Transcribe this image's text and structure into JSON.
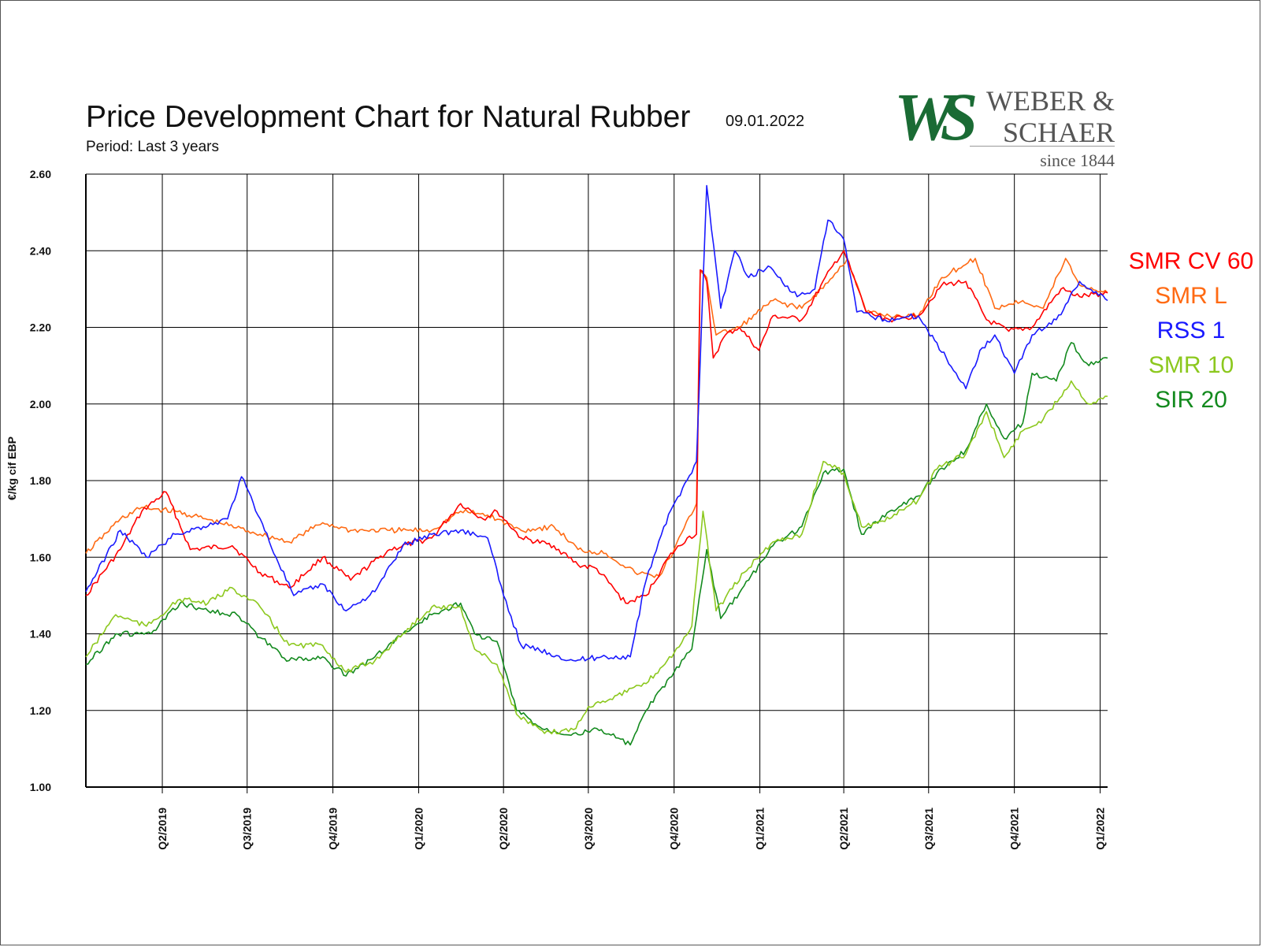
{
  "header": {
    "title": "Price Development Chart for Natural Rubber",
    "date": "09.01.2022",
    "subtitle": "Period: Last 3 years"
  },
  "logo": {
    "mark": "WS",
    "line1": "WEBER &",
    "line2": "SCHAER",
    "line3": "since 1844",
    "color": "#1a6b34"
  },
  "chart_data": {
    "type": "line",
    "title": "Price Development Chart for Natural Rubber",
    "ylabel": "€/kg cif EBP",
    "xlabel": "",
    "ylim": [
      1.0,
      2.6
    ],
    "yticks": [
      "1.00",
      "1.20",
      "1.40",
      "1.60",
      "1.80",
      "2.00",
      "2.20",
      "2.40",
      "2.60"
    ],
    "xlim": [
      "2019-01-09",
      "2022-01-09"
    ],
    "x_tick_labels": [
      {
        "label": "Q2/2019",
        "date": "2019-04-01"
      },
      {
        "label": "Q3/2019",
        "date": "2019-07-01"
      },
      {
        "label": "Q4/2019",
        "date": "2019-10-01"
      },
      {
        "label": "Q1/2020",
        "date": "2020-01-01"
      },
      {
        "label": "Q2/2020",
        "date": "2020-04-01"
      },
      {
        "label": "Q3/2020",
        "date": "2020-07-01"
      },
      {
        "label": "Q4/2020",
        "date": "2020-10-01"
      },
      {
        "label": "Q1/2021",
        "date": "2021-01-01"
      },
      {
        "label": "Q2/2021",
        "date": "2021-04-01"
      },
      {
        "label": "Q3/2021",
        "date": "2021-07-01"
      },
      {
        "label": "Q4/2021",
        "date": "2021-10-01"
      },
      {
        "label": "Q1/2022",
        "date": "2022-01-01"
      }
    ],
    "grid": true,
    "legend_position": "right",
    "series": [
      {
        "name": "SMR CV 60",
        "color": "#ff0000",
        "points": [
          [
            "2019-01-09",
            1.5
          ],
          [
            "2019-02-15",
            1.62
          ],
          [
            "2019-03-10",
            1.72
          ],
          [
            "2019-04-05",
            1.77
          ],
          [
            "2019-05-01",
            1.62
          ],
          [
            "2019-06-15",
            1.63
          ],
          [
            "2019-07-15",
            1.56
          ],
          [
            "2019-08-15",
            1.52
          ],
          [
            "2019-09-20",
            1.6
          ],
          [
            "2019-10-20",
            1.54
          ],
          [
            "2019-12-01",
            1.62
          ],
          [
            "2020-01-15",
            1.65
          ],
          [
            "2020-02-15",
            1.74
          ],
          [
            "2020-03-10",
            1.7
          ],
          [
            "2020-03-25",
            1.72
          ],
          [
            "2020-04-20",
            1.65
          ],
          [
            "2020-05-25",
            1.63
          ],
          [
            "2020-06-20",
            1.58
          ],
          [
            "2020-07-10",
            1.57
          ],
          [
            "2020-08-10",
            1.48
          ],
          [
            "2020-09-01",
            1.5
          ],
          [
            "2020-09-25",
            1.6
          ],
          [
            "2020-10-15",
            1.65
          ],
          [
            "2020-10-25",
            1.66
          ],
          [
            "2020-10-29",
            2.35
          ],
          [
            "2020-11-05",
            2.32
          ],
          [
            "2020-11-12",
            2.12
          ],
          [
            "2020-11-25",
            2.18
          ],
          [
            "2020-12-10",
            2.2
          ],
          [
            "2020-12-31",
            2.14
          ],
          [
            "2021-01-15",
            2.23
          ],
          [
            "2021-02-15",
            2.22
          ],
          [
            "2021-03-20",
            2.36
          ],
          [
            "2021-04-01",
            2.4
          ],
          [
            "2021-04-25",
            2.24
          ],
          [
            "2021-05-20",
            2.22
          ],
          [
            "2021-06-20",
            2.23
          ],
          [
            "2021-07-15",
            2.31
          ],
          [
            "2021-08-10",
            2.32
          ],
          [
            "2021-09-01",
            2.22
          ],
          [
            "2021-09-25",
            2.19
          ],
          [
            "2021-10-20",
            2.2
          ],
          [
            "2021-11-20",
            2.3
          ],
          [
            "2021-12-10",
            2.28
          ],
          [
            "2022-01-09",
            2.29
          ]
        ]
      },
      {
        "name": "SMR L",
        "color": "#ff6a13",
        "points": [
          [
            "2019-01-09",
            1.61
          ],
          [
            "2019-02-15",
            1.7
          ],
          [
            "2019-03-10",
            1.73
          ],
          [
            "2019-04-15",
            1.72
          ],
          [
            "2019-06-01",
            1.69
          ],
          [
            "2019-07-15",
            1.66
          ],
          [
            "2019-08-15",
            1.64
          ],
          [
            "2019-09-20",
            1.69
          ],
          [
            "2019-10-20",
            1.67
          ],
          [
            "2019-12-01",
            1.67
          ],
          [
            "2020-01-15",
            1.67
          ],
          [
            "2020-02-15",
            1.72
          ],
          [
            "2020-03-15",
            1.71
          ],
          [
            "2020-04-20",
            1.67
          ],
          [
            "2020-05-25",
            1.68
          ],
          [
            "2020-06-20",
            1.62
          ],
          [
            "2020-07-20",
            1.61
          ],
          [
            "2020-08-20",
            1.56
          ],
          [
            "2020-09-15",
            1.55
          ],
          [
            "2020-10-01",
            1.62
          ],
          [
            "2020-10-25",
            1.74
          ],
          [
            "2020-10-29",
            2.35
          ],
          [
            "2020-11-05",
            2.33
          ],
          [
            "2020-11-15",
            2.18
          ],
          [
            "2020-12-10",
            2.2
          ],
          [
            "2021-01-15",
            2.27
          ],
          [
            "2021-02-15",
            2.25
          ],
          [
            "2021-03-20",
            2.33
          ],
          [
            "2021-04-05",
            2.38
          ],
          [
            "2021-04-25",
            2.24
          ],
          [
            "2021-05-20",
            2.23
          ],
          [
            "2021-06-20",
            2.23
          ],
          [
            "2021-07-15",
            2.33
          ],
          [
            "2021-08-20",
            2.38
          ],
          [
            "2021-09-10",
            2.25
          ],
          [
            "2021-10-10",
            2.27
          ],
          [
            "2021-11-01",
            2.25
          ],
          [
            "2021-11-25",
            2.38
          ],
          [
            "2021-12-10",
            2.31
          ],
          [
            "2022-01-09",
            2.29
          ]
        ]
      },
      {
        "name": "RSS 1",
        "color": "#1a1aff",
        "points": [
          [
            "2019-01-09",
            1.51
          ],
          [
            "2019-02-15",
            1.67
          ],
          [
            "2019-03-15",
            1.6
          ],
          [
            "2019-04-15",
            1.66
          ],
          [
            "2019-05-15",
            1.68
          ],
          [
            "2019-06-10",
            1.7
          ],
          [
            "2019-06-25",
            1.81
          ],
          [
            "2019-07-15",
            1.7
          ],
          [
            "2019-08-01",
            1.6
          ],
          [
            "2019-08-20",
            1.5
          ],
          [
            "2019-09-20",
            1.53
          ],
          [
            "2019-10-15",
            1.46
          ],
          [
            "2019-11-15",
            1.51
          ],
          [
            "2019-12-15",
            1.63
          ],
          [
            "2020-01-15",
            1.66
          ],
          [
            "2020-02-15",
            1.67
          ],
          [
            "2020-03-15",
            1.65
          ],
          [
            "2020-04-01",
            1.5
          ],
          [
            "2020-04-20",
            1.37
          ],
          [
            "2020-05-20",
            1.35
          ],
          [
            "2020-06-15",
            1.33
          ],
          [
            "2020-07-15",
            1.34
          ],
          [
            "2020-08-15",
            1.34
          ],
          [
            "2020-09-01",
            1.54
          ],
          [
            "2020-09-20",
            1.68
          ],
          [
            "2020-10-10",
            1.78
          ],
          [
            "2020-10-25",
            1.85
          ],
          [
            "2020-11-05",
            2.57
          ],
          [
            "2020-11-20",
            2.25
          ],
          [
            "2020-12-05",
            2.4
          ],
          [
            "2020-12-20",
            2.33
          ],
          [
            "2021-01-10",
            2.36
          ],
          [
            "2021-02-10",
            2.28
          ],
          [
            "2021-03-01",
            2.3
          ],
          [
            "2021-03-15",
            2.48
          ],
          [
            "2021-04-01",
            2.43
          ],
          [
            "2021-04-15",
            2.24
          ],
          [
            "2021-05-15",
            2.22
          ],
          [
            "2021-06-20",
            2.23
          ],
          [
            "2021-07-20",
            2.12
          ],
          [
            "2021-08-10",
            2.04
          ],
          [
            "2021-08-25",
            2.14
          ],
          [
            "2021-09-10",
            2.18
          ],
          [
            "2021-10-01",
            2.08
          ],
          [
            "2021-10-20",
            2.18
          ],
          [
            "2021-11-15",
            2.22
          ],
          [
            "2021-12-10",
            2.32
          ],
          [
            "2022-01-09",
            2.27
          ]
        ]
      },
      {
        "name": "SMR 10",
        "color": "#8cc81e",
        "points": [
          [
            "2019-01-09",
            1.34
          ],
          [
            "2019-02-10",
            1.45
          ],
          [
            "2019-03-15",
            1.42
          ],
          [
            "2019-04-20",
            1.49
          ],
          [
            "2019-05-20",
            1.48
          ],
          [
            "2019-06-15",
            1.52
          ],
          [
            "2019-07-15",
            1.47
          ],
          [
            "2019-08-15",
            1.37
          ],
          [
            "2019-09-20",
            1.37
          ],
          [
            "2019-10-15",
            1.3
          ],
          [
            "2019-11-15",
            1.33
          ],
          [
            "2019-12-15",
            1.4
          ],
          [
            "2020-01-15",
            1.47
          ],
          [
            "2020-02-15",
            1.47
          ],
          [
            "2020-03-01",
            1.36
          ],
          [
            "2020-03-25",
            1.32
          ],
          [
            "2020-04-15",
            1.19
          ],
          [
            "2020-05-15",
            1.14
          ],
          [
            "2020-06-15",
            1.15
          ],
          [
            "2020-07-01",
            1.21
          ],
          [
            "2020-08-01",
            1.24
          ],
          [
            "2020-09-01",
            1.27
          ],
          [
            "2020-10-01",
            1.35
          ],
          [
            "2020-10-20",
            1.42
          ],
          [
            "2020-11-01",
            1.72
          ],
          [
            "2020-11-15",
            1.46
          ],
          [
            "2020-12-15",
            1.56
          ],
          [
            "2021-01-15",
            1.64
          ],
          [
            "2021-02-15",
            1.66
          ],
          [
            "2021-03-10",
            1.85
          ],
          [
            "2021-04-01",
            1.82
          ],
          [
            "2021-04-20",
            1.68
          ],
          [
            "2021-05-20",
            1.7
          ],
          [
            "2021-06-20",
            1.75
          ],
          [
            "2021-07-10",
            1.83
          ],
          [
            "2021-08-10",
            1.87
          ],
          [
            "2021-09-01",
            1.98
          ],
          [
            "2021-09-20",
            1.86
          ],
          [
            "2021-10-10",
            1.93
          ],
          [
            "2021-11-01",
            1.96
          ],
          [
            "2021-12-01",
            2.06
          ],
          [
            "2021-12-20",
            2.0
          ],
          [
            "2022-01-09",
            2.02
          ]
        ]
      },
      {
        "name": "SIR 20",
        "color": "#138a1e",
        "points": [
          [
            "2019-01-09",
            1.32
          ],
          [
            "2019-02-10",
            1.4
          ],
          [
            "2019-03-20",
            1.4
          ],
          [
            "2019-04-20",
            1.48
          ],
          [
            "2019-05-20",
            1.46
          ],
          [
            "2019-06-20",
            1.45
          ],
          [
            "2019-07-15",
            1.39
          ],
          [
            "2019-08-15",
            1.33
          ],
          [
            "2019-09-20",
            1.34
          ],
          [
            "2019-10-15",
            1.29
          ],
          [
            "2019-11-15",
            1.34
          ],
          [
            "2019-12-15",
            1.4
          ],
          [
            "2020-01-15",
            1.45
          ],
          [
            "2020-02-15",
            1.48
          ],
          [
            "2020-03-01",
            1.4
          ],
          [
            "2020-03-25",
            1.38
          ],
          [
            "2020-04-15",
            1.2
          ],
          [
            "2020-05-15",
            1.15
          ],
          [
            "2020-06-15",
            1.14
          ],
          [
            "2020-07-15",
            1.15
          ],
          [
            "2020-08-15",
            1.11
          ],
          [
            "2020-09-01",
            1.2
          ],
          [
            "2020-10-01",
            1.3
          ],
          [
            "2020-10-20",
            1.36
          ],
          [
            "2020-11-05",
            1.62
          ],
          [
            "2020-11-20",
            1.44
          ],
          [
            "2020-12-20",
            1.54
          ],
          [
            "2021-01-15",
            1.63
          ],
          [
            "2021-02-15",
            1.68
          ],
          [
            "2021-03-10",
            1.82
          ],
          [
            "2021-04-01",
            1.83
          ],
          [
            "2021-04-20",
            1.66
          ],
          [
            "2021-05-20",
            1.72
          ],
          [
            "2021-06-20",
            1.76
          ],
          [
            "2021-07-10",
            1.82
          ],
          [
            "2021-08-10",
            1.88
          ],
          [
            "2021-09-01",
            2.0
          ],
          [
            "2021-09-20",
            1.91
          ],
          [
            "2021-10-10",
            1.95
          ],
          [
            "2021-10-20",
            2.08
          ],
          [
            "2021-11-15",
            2.06
          ],
          [
            "2021-12-01",
            2.16
          ],
          [
            "2021-12-20",
            2.1
          ],
          [
            "2022-01-09",
            2.12
          ]
        ]
      }
    ]
  }
}
